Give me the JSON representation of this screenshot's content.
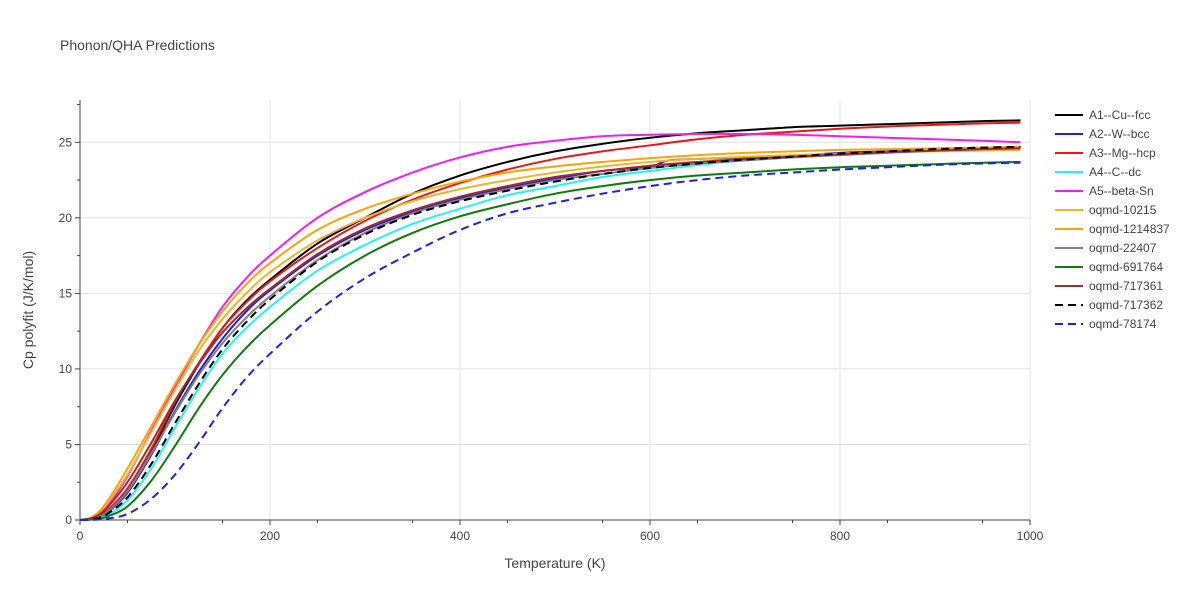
{
  "chart_data": {
    "type": "line",
    "title": "Phonon/QHA Predictions",
    "xlabel": "Temperature (K)",
    "ylabel": "Cp polyfit (J/K/mol)",
    "xlim": [
      0,
      1000
    ],
    "ylim": [
      0,
      27.8
    ],
    "xticks": [
      0,
      200,
      400,
      600,
      800,
      1000
    ],
    "yticks": [
      0,
      5,
      10,
      15,
      20,
      25
    ],
    "grid": true,
    "legend_position": "right",
    "series": [
      {
        "name": "A1--Cu--fcc",
        "color": "#000000",
        "dash": "solid",
        "x": [
          0,
          10,
          20,
          30,
          50,
          75,
          100,
          125,
          150,
          175,
          200,
          250,
          300,
          350,
          400,
          450,
          500,
          550,
          600,
          650,
          700,
          750,
          800,
          850,
          900,
          950,
          990
        ],
        "y": [
          0,
          0.05,
          0.2,
          0.6,
          1.9,
          4.5,
          7.6,
          10.3,
          12.7,
          14.5,
          15.9,
          18.3,
          20.0,
          21.6,
          22.8,
          23.7,
          24.4,
          24.9,
          25.3,
          25.6,
          25.8,
          26.0,
          26.1,
          26.2,
          26.3,
          26.4,
          26.45
        ]
      },
      {
        "name": "A2--W--bcc",
        "color": "#1f1fe6",
        "dash": "solid",
        "x": [
          0,
          10,
          20,
          30,
          50,
          75,
          100,
          125,
          150,
          175,
          200,
          250,
          300,
          350,
          400,
          450,
          500,
          550,
          600,
          610,
          620,
          650,
          700,
          750,
          800,
          850,
          900,
          950,
          990
        ],
        "y": [
          0,
          0.05,
          0.2,
          0.55,
          1.8,
          4.3,
          7.2,
          9.8,
          12.0,
          13.8,
          15.2,
          17.5,
          19.2,
          20.4,
          21.3,
          22.0,
          22.6,
          23.1,
          23.4,
          23.6,
          23.8,
          23.9,
          24.0,
          24.1,
          24.3,
          24.4,
          24.5,
          24.6,
          24.7
        ]
      },
      {
        "name": "A3--Mg--hcp",
        "color": "#e61919",
        "dash": "solid",
        "x": [
          0,
          10,
          20,
          30,
          50,
          75,
          100,
          125,
          150,
          175,
          200,
          250,
          300,
          350,
          400,
          450,
          500,
          550,
          600,
          650,
          700,
          750,
          800,
          850,
          900,
          950,
          990
        ],
        "y": [
          0,
          0.05,
          0.25,
          0.7,
          2.1,
          4.7,
          7.8,
          10.4,
          12.7,
          14.4,
          15.8,
          18.0,
          19.8,
          21.2,
          22.3,
          23.2,
          23.9,
          24.4,
          24.8,
          25.2,
          25.5,
          25.7,
          25.9,
          26.05,
          26.15,
          26.25,
          26.3
        ]
      },
      {
        "name": "A4--C--dc",
        "color": "#22f5f5",
        "dash": "solid",
        "x": [
          0,
          10,
          20,
          30,
          50,
          75,
          100,
          125,
          150,
          175,
          200,
          250,
          300,
          350,
          400,
          450,
          500,
          550,
          600,
          650,
          700,
          750,
          800,
          850,
          900,
          950,
          990
        ],
        "y": [
          0,
          0.03,
          0.12,
          0.35,
          1.3,
          3.4,
          6.1,
          8.7,
          11.0,
          12.7,
          14.1,
          16.5,
          18.2,
          19.6,
          20.6,
          21.5,
          22.1,
          22.7,
          23.1,
          23.5,
          23.8,
          24.0,
          24.2,
          24.35,
          24.5,
          24.6,
          24.65
        ]
      },
      {
        "name": "A5--beta-Sn",
        "color": "#f21df2",
        "dash": "solid",
        "x": [
          0,
          10,
          20,
          30,
          50,
          75,
          100,
          125,
          150,
          175,
          200,
          250,
          300,
          350,
          400,
          450,
          500,
          550,
          600,
          650,
          700,
          750,
          800,
          850,
          900,
          950,
          990
        ],
        "y": [
          0,
          0.1,
          0.4,
          1.0,
          2.9,
          5.9,
          8.8,
          11.6,
          14.1,
          16.0,
          17.5,
          20.0,
          21.7,
          23.0,
          24.0,
          24.7,
          25.1,
          25.4,
          25.5,
          25.55,
          25.55,
          25.5,
          25.4,
          25.3,
          25.2,
          25.1,
          25.0
        ]
      },
      {
        "name": "oqmd-10215",
        "color": "#f0b429",
        "dash": "solid",
        "x": [
          0,
          10,
          20,
          30,
          50,
          75,
          100,
          125,
          150,
          175,
          200,
          250,
          300,
          350,
          400,
          450,
          500,
          550,
          600,
          650,
          700,
          750,
          800,
          850,
          900,
          950,
          990
        ],
        "y": [
          0,
          0.1,
          0.5,
          1.2,
          3.0,
          5.8,
          8.6,
          11.2,
          13.3,
          15.0,
          16.4,
          18.5,
          20.0,
          21.1,
          21.9,
          22.5,
          23.0,
          23.4,
          23.7,
          23.9,
          24.05,
          24.15,
          24.25,
          24.35,
          24.4,
          24.45,
          24.5
        ]
      },
      {
        "name": "oqmd-1214837",
        "color": "#ffa300",
        "dash": "solid",
        "x": [
          0,
          10,
          20,
          30,
          50,
          75,
          100,
          125,
          150,
          175,
          200,
          250,
          300,
          350,
          400,
          450,
          500,
          550,
          600,
          650,
          700,
          750,
          800,
          850,
          900,
          950,
          990
        ],
        "y": [
          0,
          0.12,
          0.55,
          1.35,
          3.4,
          6.2,
          9.0,
          11.6,
          13.8,
          15.6,
          17.0,
          19.2,
          20.6,
          21.6,
          22.4,
          23.0,
          23.4,
          23.7,
          23.95,
          24.15,
          24.3,
          24.4,
          24.5,
          24.55,
          24.6,
          24.65,
          24.7
        ]
      },
      {
        "name": "oqmd-22407",
        "color": "#808080",
        "dash": "solid",
        "x": [
          0,
          10,
          20,
          30,
          50,
          75,
          100,
          125,
          150,
          175,
          200,
          250,
          300,
          350,
          400,
          450,
          500,
          550,
          600,
          650,
          700,
          750,
          800,
          850,
          900,
          950,
          990
        ],
        "y": [
          0,
          0.05,
          0.2,
          0.6,
          1.9,
          4.4,
          7.1,
          9.6,
          11.7,
          13.4,
          14.8,
          17.2,
          19.0,
          20.3,
          21.2,
          21.9,
          22.5,
          22.9,
          23.3,
          23.6,
          23.8,
          24.0,
          24.15,
          24.3,
          24.45,
          24.55,
          24.6
        ]
      },
      {
        "name": "oqmd-691764",
        "color": "#0a7d0a",
        "dash": "solid",
        "x": [
          0,
          10,
          20,
          30,
          50,
          75,
          100,
          125,
          150,
          175,
          200,
          250,
          300,
          350,
          400,
          450,
          500,
          550,
          600,
          650,
          700,
          750,
          800,
          850,
          900,
          950,
          990
        ],
        "y": [
          0,
          0.02,
          0.08,
          0.25,
          0.9,
          2.6,
          4.9,
          7.4,
          9.6,
          11.4,
          12.9,
          15.5,
          17.5,
          19.0,
          20.1,
          20.9,
          21.6,
          22.1,
          22.5,
          22.8,
          23.0,
          23.2,
          23.35,
          23.45,
          23.55,
          23.65,
          23.7
        ]
      },
      {
        "name": "oqmd-717361",
        "color": "#a52a2a",
        "dash": "solid",
        "x": [
          0,
          10,
          20,
          30,
          50,
          75,
          100,
          125,
          150,
          175,
          200,
          250,
          300,
          350,
          400,
          450,
          500,
          550,
          600,
          650,
          700,
          750,
          800,
          850,
          900,
          950,
          990
        ],
        "y": [
          0,
          0.08,
          0.35,
          0.9,
          2.5,
          5.1,
          7.9,
          10.3,
          12.4,
          14.0,
          15.3,
          17.6,
          19.3,
          20.5,
          21.4,
          22.1,
          22.7,
          23.1,
          23.45,
          23.7,
          23.9,
          24.05,
          24.2,
          24.35,
          24.45,
          24.55,
          24.6
        ]
      },
      {
        "name": "oqmd-717362",
        "color": "#000000",
        "dash": "dash",
        "x": [
          0,
          10,
          20,
          30,
          50,
          75,
          100,
          125,
          150,
          175,
          200,
          250,
          300,
          350,
          400,
          450,
          500,
          550,
          600,
          650,
          700,
          750,
          800,
          850,
          900,
          950,
          990
        ],
        "y": [
          0,
          0.04,
          0.15,
          0.45,
          1.5,
          3.7,
          6.4,
          9.0,
          11.3,
          13.1,
          14.6,
          17.1,
          18.9,
          20.2,
          21.1,
          21.8,
          22.4,
          22.9,
          23.3,
          23.6,
          23.85,
          24.05,
          24.25,
          24.4,
          24.55,
          24.65,
          24.7
        ]
      },
      {
        "name": "oqmd-78174",
        "color": "#1f1fe6",
        "dash": "dash",
        "x": [
          0,
          10,
          20,
          30,
          50,
          75,
          100,
          125,
          150,
          175,
          200,
          250,
          300,
          350,
          400,
          450,
          500,
          550,
          600,
          650,
          700,
          750,
          800,
          850,
          900,
          950,
          990
        ],
        "y": [
          0,
          0.01,
          0.03,
          0.1,
          0.4,
          1.4,
          3.0,
          5.1,
          7.4,
          9.4,
          11.0,
          13.8,
          16.0,
          17.7,
          19.2,
          20.3,
          21.0,
          21.6,
          22.1,
          22.5,
          22.8,
          23.0,
          23.2,
          23.35,
          23.5,
          23.6,
          23.65
        ]
      }
    ]
  }
}
